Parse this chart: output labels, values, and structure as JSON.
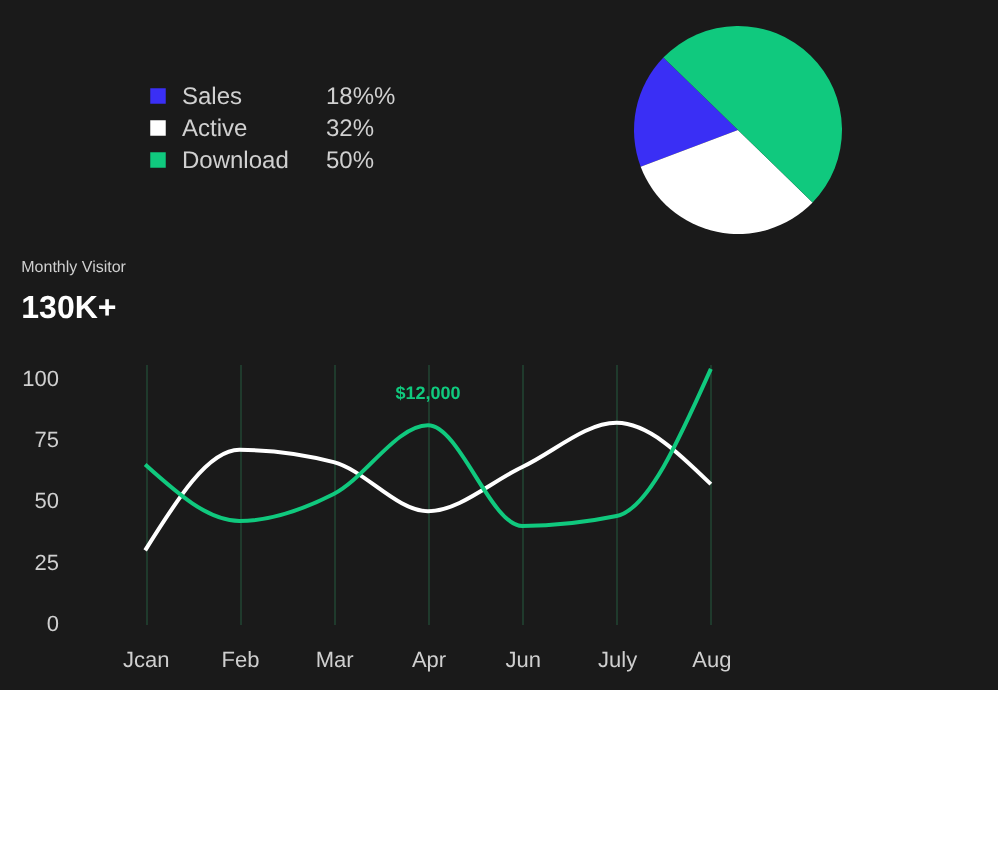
{
  "chart_data": [
    {
      "type": "pie",
      "categories": [
        "Sales",
        "Active",
        "Download"
      ],
      "values": [
        18,
        32,
        50
      ],
      "colors": [
        "#3a2ff5",
        "#ffffff",
        "#10c97e"
      ],
      "value_labels": [
        "18%%",
        "32%",
        "50%"
      ],
      "legend": "left"
    },
    {
      "type": "line",
      "title": "Monthly Visitor",
      "subtitle": "130K+",
      "categories": [
        "Jcan",
        "Feb",
        "Mar",
        "Apr",
        "Jun",
        "July",
        "Aug"
      ],
      "ylim": [
        0,
        106
      ],
      "yticks": [
        0,
        25,
        50,
        75,
        100
      ],
      "grid": "x",
      "marker": "none",
      "line_style": "solid",
      "series": [
        {
          "color": "#ffffff",
          "values": [
            30,
            71,
            66,
            46,
            64,
            82,
            57
          ]
        },
        {
          "color": "#10c97e",
          "values": [
            65,
            42,
            53,
            81,
            40,
            44,
            104
          ]
        }
      ],
      "annotations": [
        {
          "text": "$12,000",
          "x": "Apr",
          "y": 81
        }
      ]
    }
  ]
}
